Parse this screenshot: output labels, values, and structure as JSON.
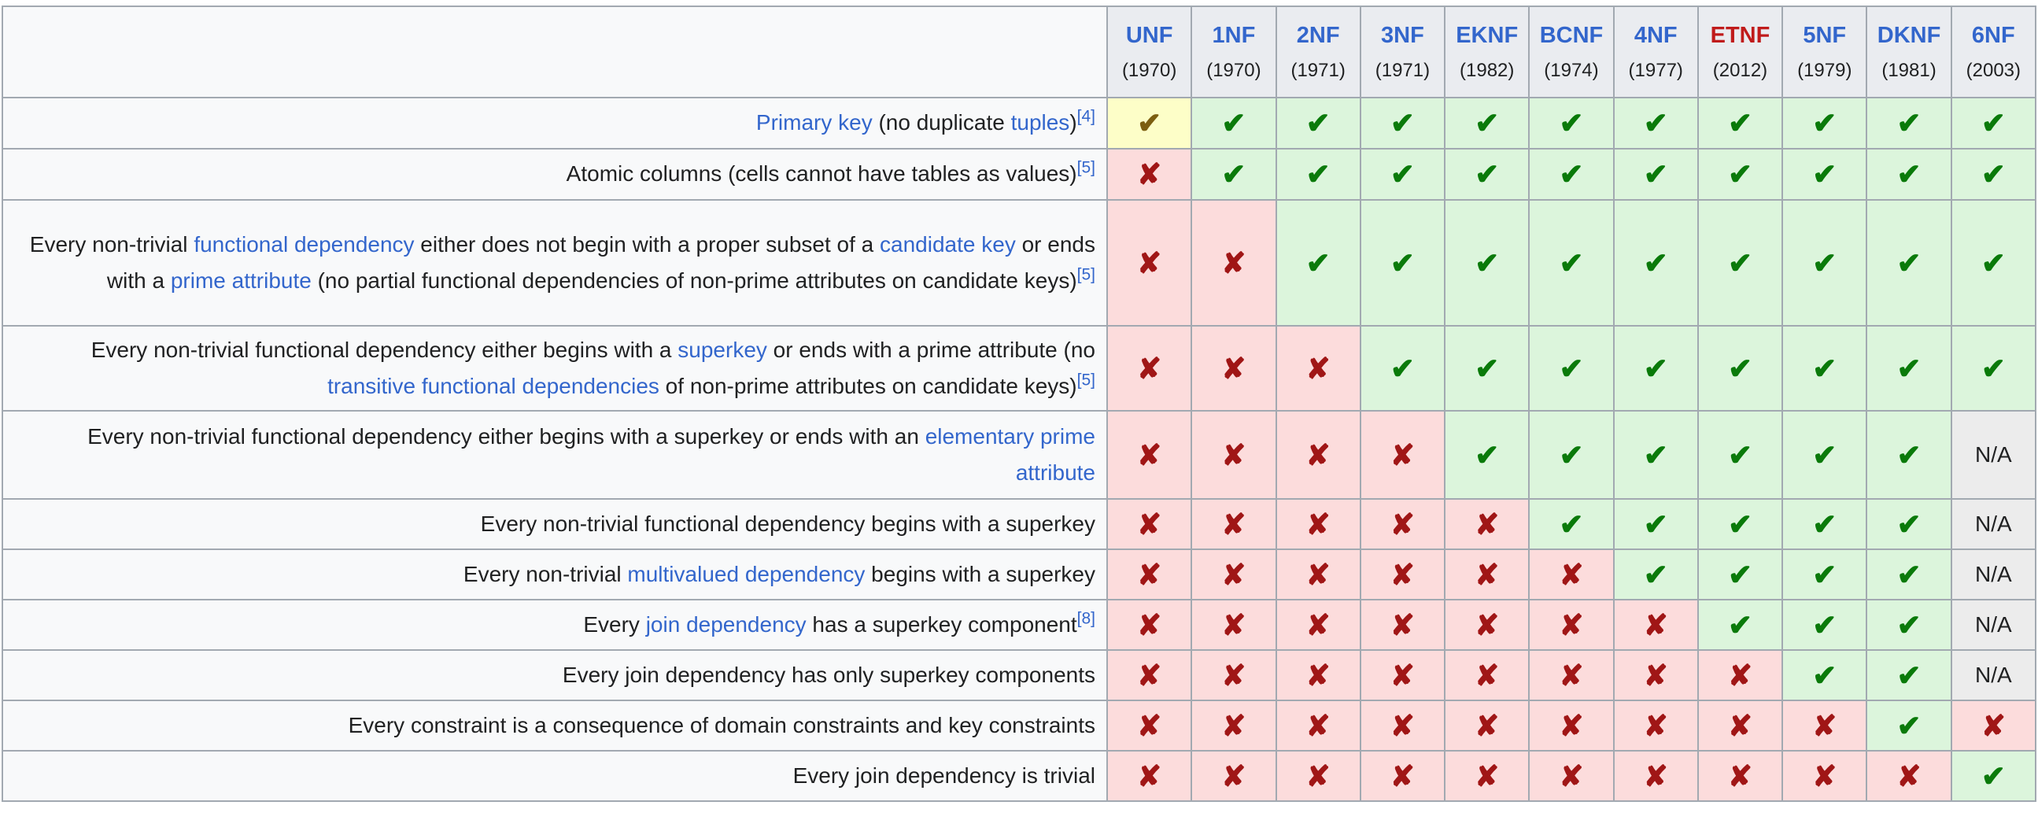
{
  "table": {
    "columns": [
      {
        "abbr": "UNF",
        "year": "(1970)",
        "link_color": "#3366cc"
      },
      {
        "abbr": "1NF",
        "year": "(1970)",
        "link_color": "#3366cc"
      },
      {
        "abbr": "2NF",
        "year": "(1971)",
        "link_color": "#3366cc"
      },
      {
        "abbr": "3NF",
        "year": "(1971)",
        "link_color": "#3366cc"
      },
      {
        "abbr": "EKNF",
        "year": "(1982)",
        "link_color": "#3366cc"
      },
      {
        "abbr": "BCNF",
        "year": "(1974)",
        "link_color": "#3366cc"
      },
      {
        "abbr": "4NF",
        "year": "(1977)",
        "link_color": "#3366cc"
      },
      {
        "abbr": "ETNF",
        "year": "(2012)",
        "link_color": "#c01b1b"
      },
      {
        "abbr": "5NF",
        "year": "(1979)",
        "link_color": "#3366cc"
      },
      {
        "abbr": "DKNF",
        "year": "(1981)",
        "link_color": "#3366cc"
      },
      {
        "abbr": "6NF",
        "year": "(2003)",
        "link_color": "#3366cc"
      }
    ],
    "rows": [
      {
        "label": [
          {
            "text": "Primary key",
            "link": true
          },
          {
            "text": " (no duplicate "
          },
          {
            "text": "tuples",
            "link": true
          },
          {
            "text": ")"
          }
        ],
        "ref": "[4]",
        "cells": [
          "partial",
          "yes",
          "yes",
          "yes",
          "yes",
          "yes",
          "yes",
          "yes",
          "yes",
          "yes",
          "yes"
        ]
      },
      {
        "label": [
          {
            "text": "Atomic columns (cells cannot have tables as values)"
          }
        ],
        "ref": "[5]",
        "cells": [
          "no",
          "yes",
          "yes",
          "yes",
          "yes",
          "yes",
          "yes",
          "yes",
          "yes",
          "yes",
          "yes"
        ]
      },
      {
        "label": [
          {
            "text": "Every non-trivial "
          },
          {
            "text": "functional dependency",
            "link": true
          },
          {
            "text": " either does not begin with a proper subset of a "
          },
          {
            "text": "candidate key",
            "link": true
          },
          {
            "text": " or ends with a "
          },
          {
            "text": "prime attribute",
            "link": true
          },
          {
            "text": " (no partial functional dependencies of non-prime attributes on candidate keys)"
          }
        ],
        "ref": "[5]",
        "cells": [
          "no",
          "no",
          "yes",
          "yes",
          "yes",
          "yes",
          "yes",
          "yes",
          "yes",
          "yes",
          "yes"
        ]
      },
      {
        "label": [
          {
            "text": "Every non-trivial functional dependency either begins with a "
          },
          {
            "text": "superkey",
            "link": true
          },
          {
            "text": " or ends with a prime attribute (no "
          },
          {
            "text": "transitive functional dependencies",
            "link": true
          },
          {
            "text": " of non-prime attributes on candidate keys)"
          }
        ],
        "ref": "[5]",
        "cells": [
          "no",
          "no",
          "no",
          "yes",
          "yes",
          "yes",
          "yes",
          "yes",
          "yes",
          "yes",
          "yes"
        ]
      },
      {
        "label": [
          {
            "text": "Every non-trivial functional dependency either begins with a superkey or ends with an "
          },
          {
            "text": "elementary prime attribute",
            "link": true
          }
        ],
        "ref": null,
        "cells": [
          "no",
          "no",
          "no",
          "no",
          "yes",
          "yes",
          "yes",
          "yes",
          "yes",
          "yes",
          "na"
        ]
      },
      {
        "label": [
          {
            "text": "Every non-trivial functional dependency begins with a superkey"
          }
        ],
        "ref": null,
        "cells": [
          "no",
          "no",
          "no",
          "no",
          "no",
          "yes",
          "yes",
          "yes",
          "yes",
          "yes",
          "na"
        ]
      },
      {
        "label": [
          {
            "text": "Every non-trivial "
          },
          {
            "text": "multivalued dependency",
            "link": true
          },
          {
            "text": " begins with a superkey"
          }
        ],
        "ref": null,
        "cells": [
          "no",
          "no",
          "no",
          "no",
          "no",
          "no",
          "yes",
          "yes",
          "yes",
          "yes",
          "na"
        ]
      },
      {
        "label": [
          {
            "text": "Every "
          },
          {
            "text": "join dependency",
            "link": true
          },
          {
            "text": " has a superkey component"
          }
        ],
        "ref": "[8]",
        "cells": [
          "no",
          "no",
          "no",
          "no",
          "no",
          "no",
          "no",
          "yes",
          "yes",
          "yes",
          "na"
        ]
      },
      {
        "label": [
          {
            "text": "Every join dependency has only superkey components"
          }
        ],
        "ref": null,
        "cells": [
          "no",
          "no",
          "no",
          "no",
          "no",
          "no",
          "no",
          "no",
          "yes",
          "yes",
          "na"
        ]
      },
      {
        "label": [
          {
            "text": "Every constraint is a consequence of domain constraints and key constraints"
          }
        ],
        "ref": null,
        "cells": [
          "no",
          "no",
          "no",
          "no",
          "no",
          "no",
          "no",
          "no",
          "no",
          "yes",
          "no"
        ]
      },
      {
        "label": [
          {
            "text": "Every join dependency is trivial"
          }
        ],
        "ref": null,
        "cells": [
          "no",
          "no",
          "no",
          "no",
          "no",
          "no",
          "no",
          "no",
          "no",
          "no",
          "yes"
        ]
      }
    ],
    "marks": {
      "yes": {
        "glyph": "✔",
        "color": "#0a7a0a",
        "bg": "#dcf5dc",
        "name": "yes-check"
      },
      "no": {
        "glyph": "✘",
        "color": "#a01616",
        "bg": "#fcdcdc",
        "name": "no-cross"
      },
      "partial": {
        "glyph": "✔",
        "color": "#7c5e10",
        "bg": "#fdfec8",
        "name": "partial-check"
      },
      "na": {
        "glyph": "N/A",
        "color": "#202122",
        "bg": "#ececec",
        "name": "not-applicable"
      }
    },
    "colors": {
      "link_blue": "#3366cc",
      "red_link": "#c01b1b",
      "header_bg": "#eaecf0",
      "label_bg": "#f8f9fa",
      "border": "#a2a9b1",
      "text": "#202122"
    }
  }
}
